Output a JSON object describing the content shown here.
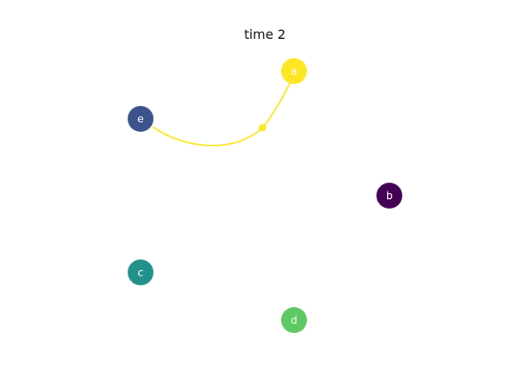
{
  "title": "time 2",
  "nodes": [
    {
      "id": "a",
      "label": "a",
      "color": "#fde725"
    },
    {
      "id": "b",
      "label": "b",
      "color": "#440154"
    },
    {
      "id": "c",
      "label": "c",
      "color": "#21918c"
    },
    {
      "id": "d",
      "label": "d",
      "color": "#5ec962"
    },
    {
      "id": "e",
      "label": "e",
      "color": "#3b528b"
    }
  ],
  "edges": [
    {
      "source": "a",
      "target": "e",
      "color": "#fde725",
      "curved": true
    }
  ]
}
